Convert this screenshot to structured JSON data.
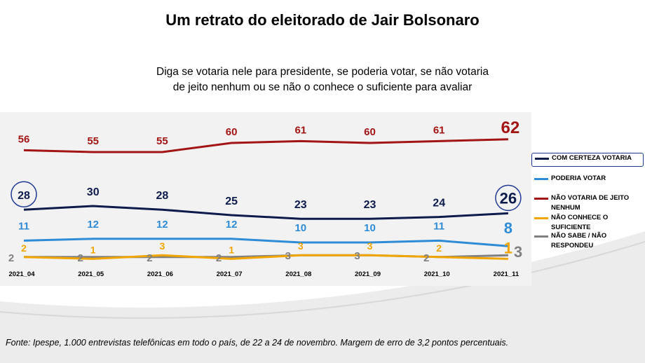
{
  "title": "Um retrato do eleitorado de Jair Bolsonaro",
  "subtitle_line1": "Diga se votaria nele para presidente, se poderia votar, se não votaria",
  "subtitle_line2": "de jeito nenhum ou se não o conhece o suficiente para avaliar",
  "source": "Fonte: Ipespe, 1.000 entrevistas telefônicas em todo o país, de 22 a 24 de novembro. Margem de erro de 3,2 pontos percentuais.",
  "chart_data": {
    "type": "line",
    "categories": [
      "2021_04",
      "2021_05",
      "2021_06",
      "2021_07",
      "2021_08",
      "2021_09",
      "2021_10",
      "2021_11"
    ],
    "series": [
      {
        "name": "NÃO VOTARIA DE JEITO NENHUM",
        "color": "#a31515",
        "values": [
          56,
          55,
          55,
          60,
          61,
          60,
          61,
          62
        ]
      },
      {
        "name": "COM CERTEZA VOTARIA",
        "color": "#0d1b4c",
        "values": [
          28,
          30,
          28,
          25,
          23,
          23,
          24,
          26
        ]
      },
      {
        "name": "PODERIA VOTAR",
        "color": "#2e8bd6",
        "values": [
          11,
          12,
          12,
          12,
          10,
          10,
          11,
          8
        ]
      },
      {
        "name": "NÃO CONHECE O SUFICIENTE",
        "color": "#f0a500",
        "values": [
          2,
          1,
          3,
          1,
          3,
          3,
          2,
          1
        ]
      },
      {
        "name": "NÃO SABE / NÃO RESPONDEU",
        "color": "#808080",
        "values": [
          2,
          2,
          2,
          2,
          3,
          3,
          2,
          3
        ]
      }
    ],
    "legend_position": "right",
    "highlighted_legend": "COM CERTEZA VOTARIA"
  },
  "legend": [
    {
      "label": "COM CERTEZA VOTARIA",
      "color": "#0d1b4c"
    },
    {
      "label": "PODERIA VOTAR",
      "color": "#2e8bd6"
    },
    {
      "label": "NÃO VOTARIA DE JEITO NENHUM",
      "color": "#a31515"
    },
    {
      "label": "NÃO CONHECE O SUFICIENTE",
      "color": "#f0a500"
    },
    {
      "label": "NÃO SABE / NÃO RESPONDEU",
      "color": "#808080"
    }
  ]
}
